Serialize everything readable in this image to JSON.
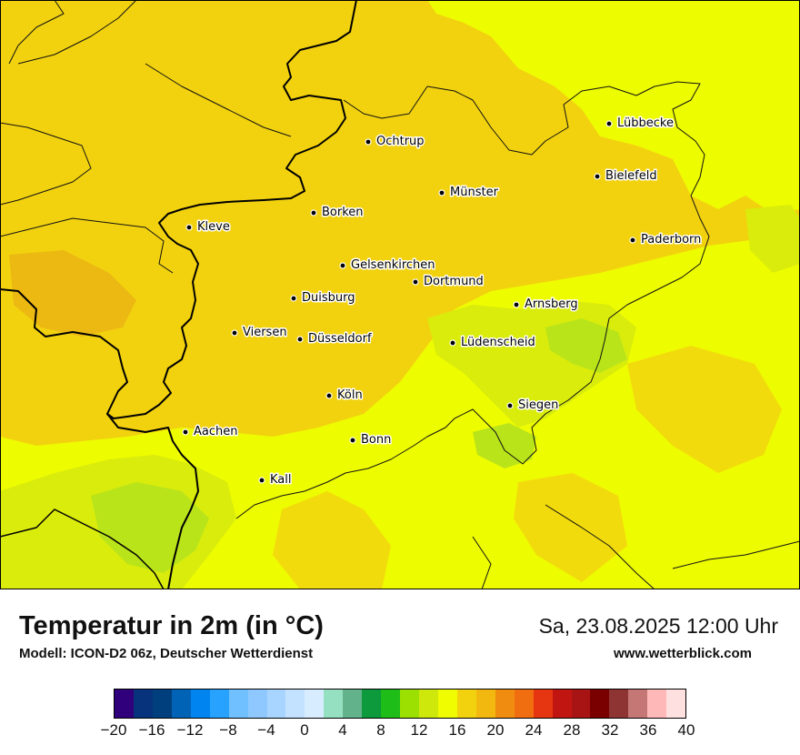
{
  "map": {
    "background_color": "#f2d20f",
    "region_colors": {
      "t14": "#b9e41a",
      "t15": "#d9ec0c",
      "t16": "#eefc00",
      "t17": "#f2d20f",
      "t19": "#ecb912"
    },
    "cities": [
      {
        "name": "Lübbecke",
        "id": "luebbecke"
      },
      {
        "name": "Ochtrup",
        "id": "ochtrup"
      },
      {
        "name": "Bielefeld",
        "id": "bielefeld"
      },
      {
        "name": "Münster",
        "id": "muenster"
      },
      {
        "name": "Borken",
        "id": "borken"
      },
      {
        "name": "Kleve",
        "id": "kleve"
      },
      {
        "name": "Paderborn",
        "id": "paderborn"
      },
      {
        "name": "Gelsenkirchen",
        "id": "gelsenkirchen"
      },
      {
        "name": "Dortmund",
        "id": "dortmund"
      },
      {
        "name": "Duisburg",
        "id": "duisburg"
      },
      {
        "name": "Arnsberg",
        "id": "arnsberg"
      },
      {
        "name": "Viersen",
        "id": "viersen"
      },
      {
        "name": "Düsseldorf",
        "id": "duesseldorf"
      },
      {
        "name": "Lüdenscheid",
        "id": "luedenscheid"
      },
      {
        "name": "Köln",
        "id": "koeln"
      },
      {
        "name": "Siegen",
        "id": "siegen"
      },
      {
        "name": "Aachen",
        "id": "aachen"
      },
      {
        "name": "Bonn",
        "id": "bonn"
      },
      {
        "name": "Kall",
        "id": "kall"
      }
    ]
  },
  "footer": {
    "title": "Temperatur in 2m (in °C)",
    "model": "Modell: ICON-D2 06z, Deutscher Wetterdienst",
    "valid_time": "Sa, 23.08.2025 12:00 Uhr",
    "website": "www.wetterblick.com"
  },
  "colorbar": {
    "ticks": [
      "−20",
      "−16",
      "−12",
      "−8",
      "−4",
      "0",
      "4",
      "8",
      "12",
      "16",
      "20",
      "24",
      "28",
      "32",
      "36",
      "40"
    ],
    "colors": [
      "#30007c",
      "#07327c",
      "#003f7e",
      "#0063b5",
      "#0085f0",
      "#28a2ff",
      "#70bfff",
      "#8ec8ff",
      "#a7d5ff",
      "#c2e2ff",
      "#d8ecff",
      "#96e0c2",
      "#62b38c",
      "#0c9a3c",
      "#1fbd17",
      "#9be000",
      "#cfe80b",
      "#f0fc00",
      "#f2d20f",
      "#f2b80f",
      "#f08d10",
      "#f06d10",
      "#e63611",
      "#c11512",
      "#a81313",
      "#7a0000",
      "#8e3433",
      "#c57776",
      "#ffb8b8",
      "#ffe0e0"
    ]
  }
}
